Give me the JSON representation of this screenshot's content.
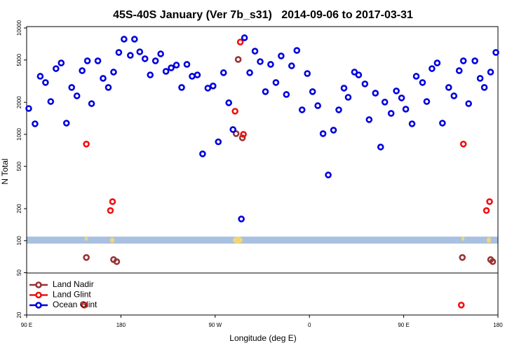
{
  "chart_data": {
    "type": "scatter",
    "title": "45S-40S January (Ver 7b_s31)   2014-09-06 to 2017-03-31",
    "x_label": "Longitude (deg E)",
    "y_label": "N Total",
    "log_y": true,
    "xlim": [
      90,
      540
    ],
    "ylim": [
      20,
      10000
    ],
    "xticks": [
      {
        "value": 90,
        "label": "90 E"
      },
      {
        "value": 180,
        "label": "180"
      },
      {
        "value": 270,
        "label": "90 W"
      },
      {
        "value": 360,
        "label": "0"
      },
      {
        "value": 450,
        "label": "90 E"
      },
      {
        "value": 540,
        "label": "180"
      }
    ],
    "yticks": [
      20,
      50,
      100,
      200,
      500,
      1000,
      2000,
      5000,
      10000
    ],
    "legend": "lower left",
    "series": [
      {
        "name": "Land Nadir",
        "color": "#993333",
        "x": [
          147,
          173,
          176,
          290,
          292,
          296,
          506,
          533,
          535
        ],
        "values": [
          69.5,
          66.4,
          63.5,
          1015,
          5060,
          927,
          69.5,
          66.4,
          63.5
        ]
      },
      {
        "name": "Land Glint",
        "color": "#ee1111",
        "x": [
          147,
          170,
          172,
          289,
          294,
          297,
          145,
          507,
          529,
          532,
          505
        ],
        "values": [
          810,
          192,
          233,
          1650,
          7380,
          1000,
          24.8,
          810,
          192,
          233,
          24.8
        ]
      },
      {
        "name": "Ocean Glint",
        "color": "#0000dd",
        "x": [
          92,
          98,
          103,
          108,
          113,
          118,
          123,
          128,
          133,
          138,
          143,
          148,
          152,
          158,
          163,
          168,
          173,
          178,
          183,
          189,
          193,
          198,
          203,
          208,
          213,
          218,
          223,
          228,
          233,
          238,
          243,
          248,
          253,
          258,
          263,
          268,
          273,
          278,
          283,
          287,
          295,
          298,
          303,
          308,
          313,
          318,
          323,
          328,
          333,
          338,
          343,
          348,
          353,
          358,
          363,
          368,
          373,
          378,
          383,
          388,
          393,
          397,
          403,
          407,
          413,
          417,
          423,
          428,
          432,
          438,
          443,
          448,
          452,
          458,
          462,
          468,
          472,
          477,
          482,
          487,
          493,
          498,
          503,
          507,
          512,
          518,
          523,
          527,
          533,
          538
        ],
        "values": [
          1750,
          1256,
          3515,
          3070,
          2035,
          4150,
          4690,
          1275,
          2760,
          2300,
          3970,
          4910,
          1945,
          4910,
          3360,
          2760,
          3850,
          5890,
          7850,
          5530,
          7850,
          5970,
          5140,
          3620,
          4910,
          5710,
          3910,
          4220,
          4480,
          2760,
          4550,
          3515,
          3620,
          655,
          2720,
          2850,
          850,
          3800,
          1980,
          1110,
          160,
          8090,
          3800,
          6060,
          4830,
          2520,
          4550,
          3070,
          5460,
          2370,
          4410,
          6150,
          1700,
          3730,
          2520,
          1860,
          1015,
          415,
          1095,
          1700,
          2720,
          2230,
          3850,
          3620,
          2980,
          1375,
          2440,
          760,
          2010,
          1575,
          2560,
          2200,
          1725,
          1256,
          3515,
          3070,
          2035,
          4150,
          4690,
          1275,
          2760,
          2300,
          3970,
          4910,
          1945,
          4910,
          3360,
          2760,
          3850,
          5890
        ]
      }
    ]
  }
}
